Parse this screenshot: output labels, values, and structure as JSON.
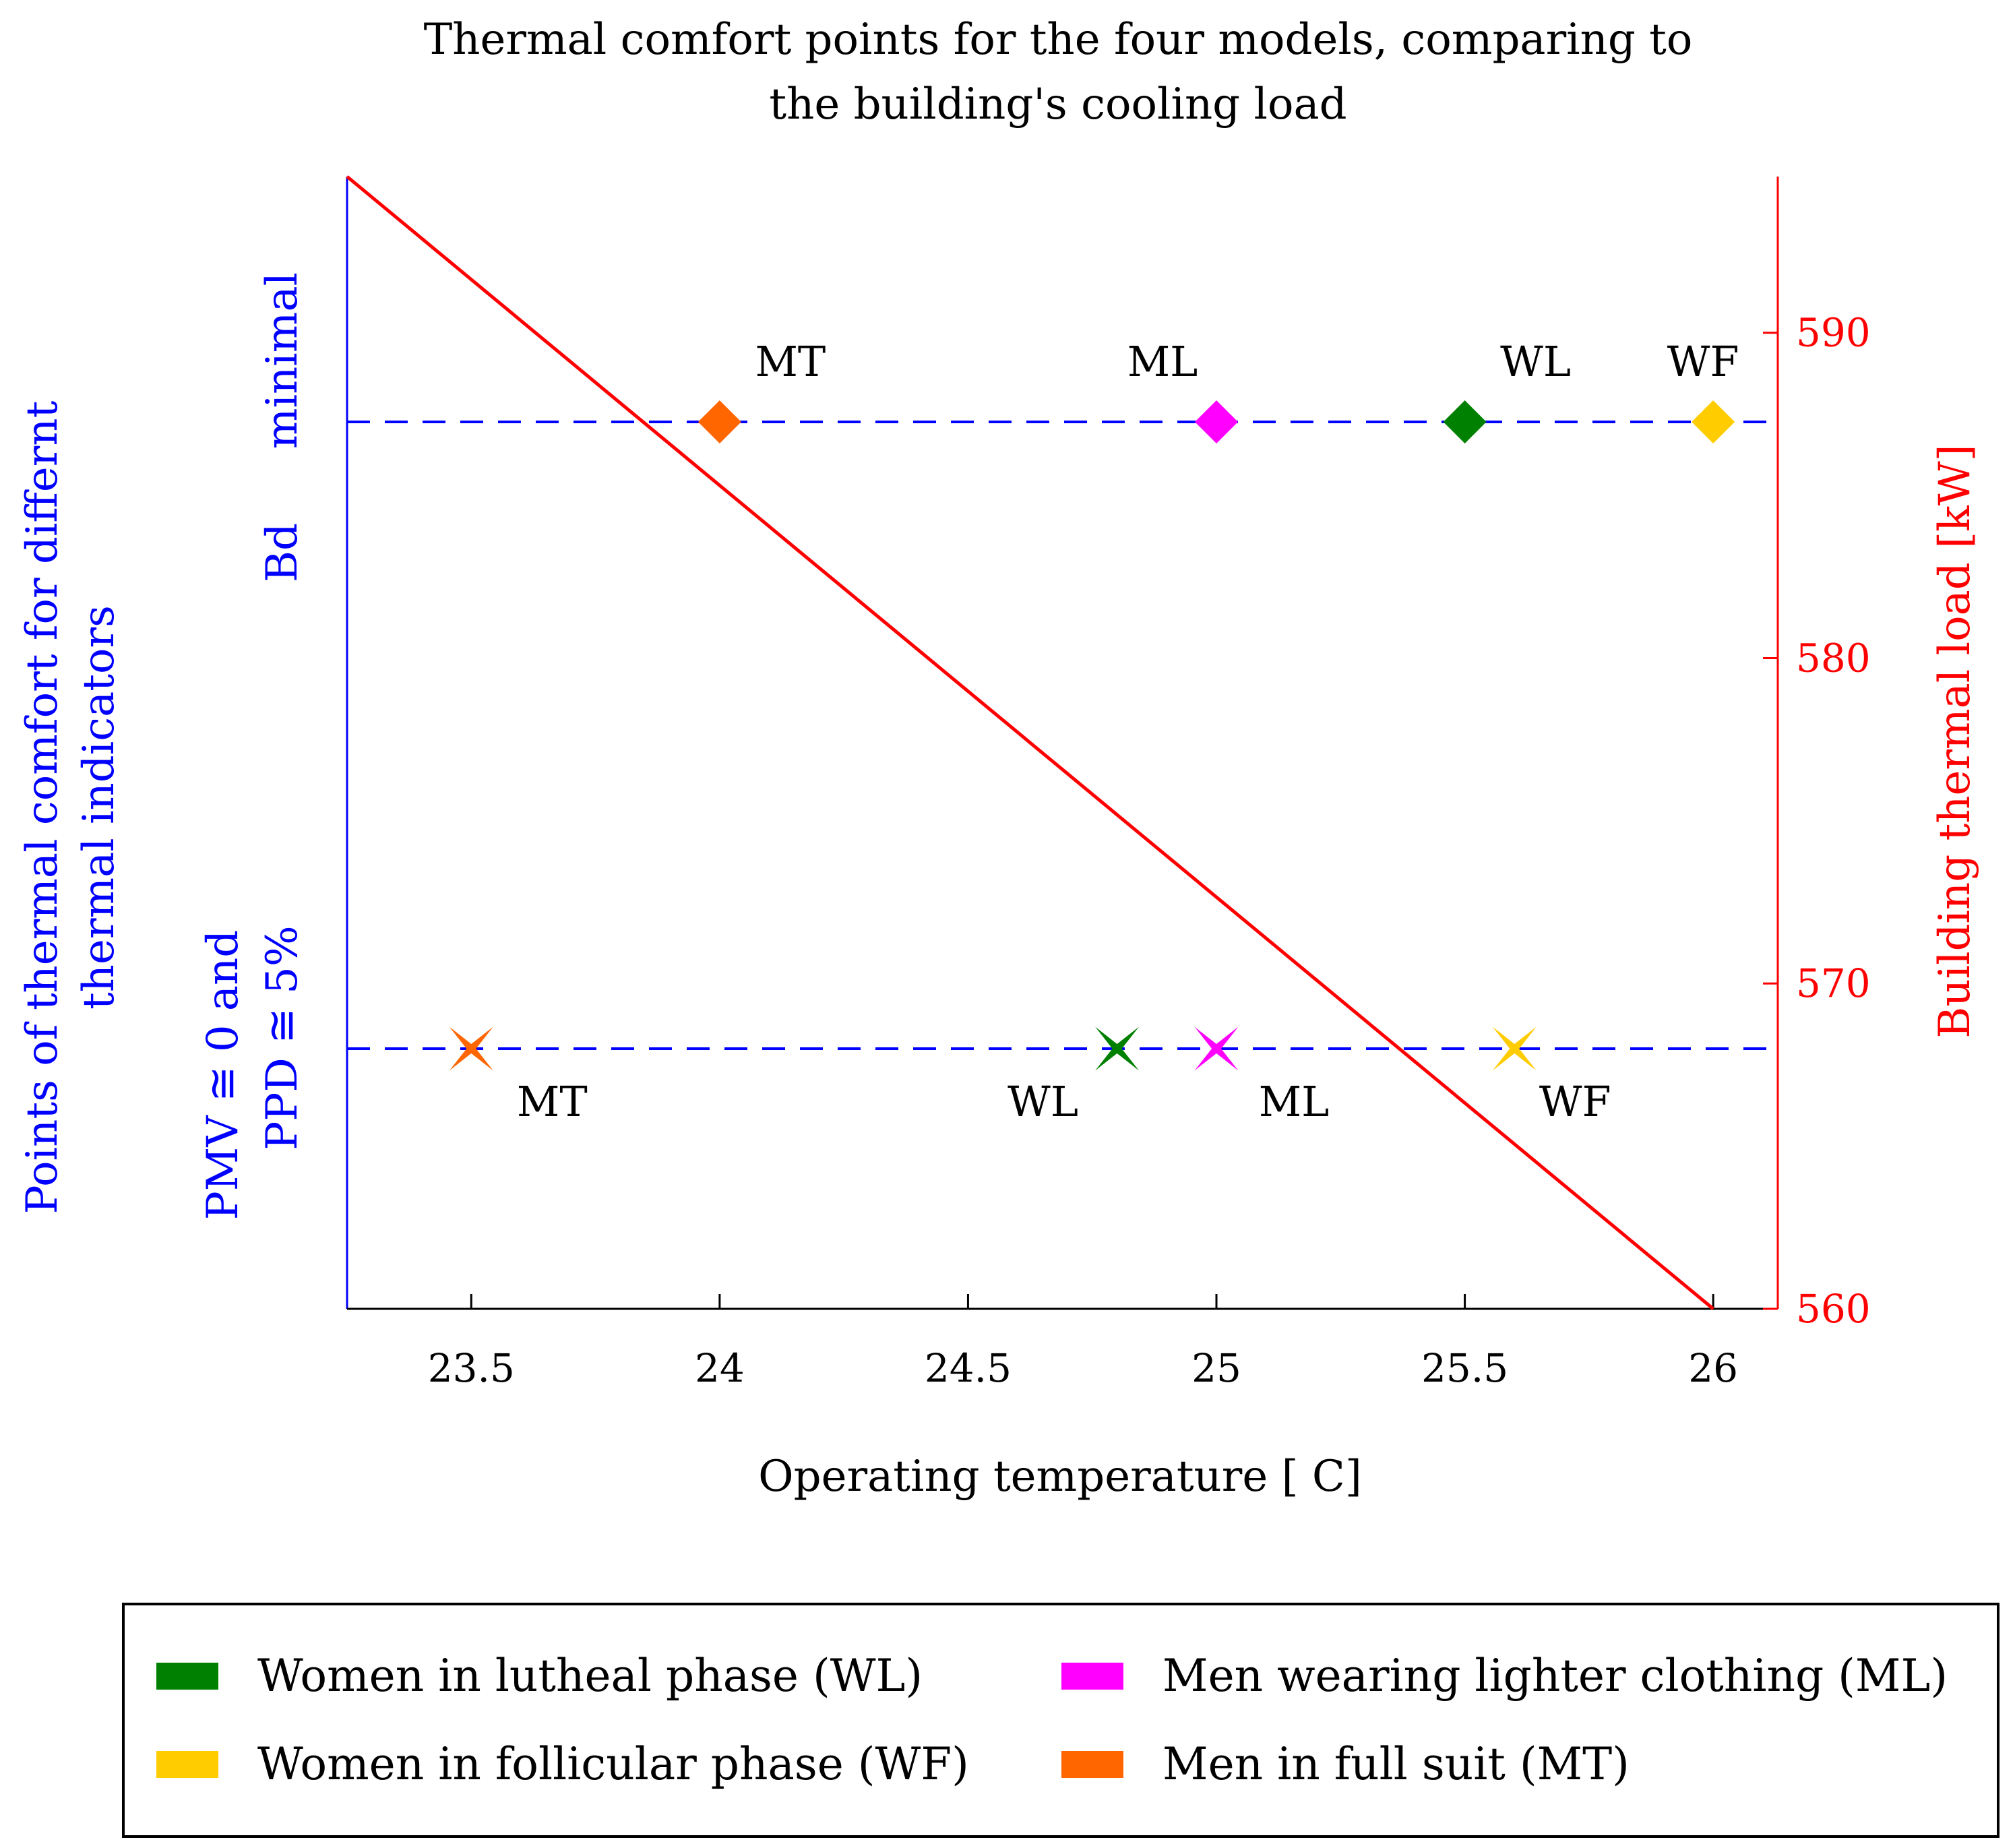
{
  "chart_data": {
    "type": "scatter",
    "title": [
      "Thermal comfort points for the four models, comparing to",
      "the building's cooling load"
    ],
    "xlabel": "Operating temperature [ C]",
    "ylabel_left": [
      "Points of thermal comfort for differnt",
      "thermal indicators"
    ],
    "ylabel_right": "Building thermal load [kW]",
    "xlim": [
      23.25,
      26.13
    ],
    "x_ticks": [
      23.5,
      24,
      24.5,
      25,
      25.5,
      26
    ],
    "x_tick_labels": [
      "23.5",
      "24",
      "24.5",
      "25",
      "25.5",
      "26"
    ],
    "y_right_lim": [
      560,
      594.8
    ],
    "y_right_ticks": [
      560,
      570,
      580,
      590
    ],
    "y_right_tick_labels": [
      "560",
      "570",
      "580",
      "590"
    ],
    "levels": [
      {
        "id": "bd",
        "label": "Bd",
        "label_extra": "minimal",
        "marker": "diamond"
      },
      {
        "id": "pmv",
        "label_line1": "PMV ≅ 0 and",
        "label_line2": "PPD ≅ 5%",
        "marker": "star"
      }
    ],
    "series": [
      {
        "name": "Women in lutheal phase (WL)",
        "abbr": "WL",
        "color": "#008000",
        "bd_x": 25.5,
        "pmv_x": 24.8
      },
      {
        "name": "Men wearing lighter clothing (ML)",
        "abbr": "ML",
        "color": "#ff00ff",
        "bd_x": 25.0,
        "pmv_x": 25.0
      },
      {
        "name": "Women in follicular phase (WF)",
        "abbr": "WF",
        "color": "#ffcc00",
        "bd_x": 26.0,
        "pmv_x": 25.6
      },
      {
        "name": "Men in full suit (MT)",
        "abbr": "MT",
        "color": "#ff6600",
        "bd_x": 24.0,
        "pmv_x": 23.5
      }
    ],
    "load_line": {
      "name": "Building thermal load",
      "color": "#ff0000",
      "x": [
        23.25,
        26.0
      ],
      "y": [
        594.8,
        560.0
      ]
    },
    "legend": {
      "placement": "bottom"
    }
  }
}
